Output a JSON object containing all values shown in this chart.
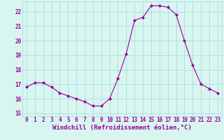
{
  "x": [
    0,
    1,
    2,
    3,
    4,
    5,
    6,
    7,
    8,
    9,
    10,
    11,
    12,
    13,
    14,
    15,
    16,
    17,
    18,
    19,
    20,
    21,
    22,
    23
  ],
  "y": [
    16.8,
    17.1,
    17.1,
    16.8,
    16.4,
    16.2,
    16.0,
    15.8,
    15.5,
    15.5,
    16.0,
    17.4,
    19.1,
    21.4,
    21.6,
    22.4,
    22.4,
    22.3,
    21.8,
    20.0,
    18.3,
    17.0,
    16.7,
    16.4
  ],
  "line_color": "#990099",
  "marker": "D",
  "marker_size": 2.0,
  "bg_color": "#d8f5f0",
  "grid_color": "#aadddd",
  "text_color": "#990099",
  "ylabel_ticks": [
    15,
    16,
    17,
    18,
    19,
    20,
    21,
    22
  ],
  "ylim": [
    14.8,
    22.7
  ],
  "xlim": [
    -0.5,
    23.5
  ],
  "xlabel": "Windchill (Refroidissement éolien,°C)",
  "tick_fontsize": 5.5,
  "xlabel_fontsize": 6.5
}
